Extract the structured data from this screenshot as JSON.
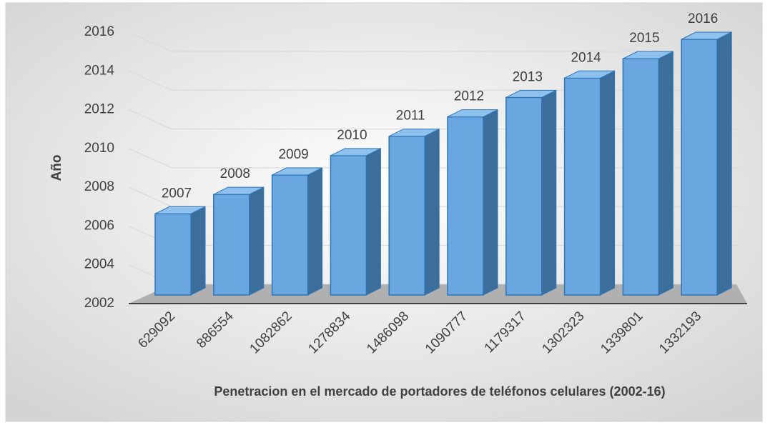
{
  "chart_data": {
    "type": "bar3d",
    "x_axis_label": "Penetracion en el mercado de portadores de teléfonos celulares (2002-16)",
    "y_axis_label": "Año",
    "categories": [
      "629092",
      "886554",
      "1082862",
      "1278834",
      "1486098",
      "1090777",
      "1179317",
      "1302323",
      "1339801",
      "1332193"
    ],
    "values": [
      2007,
      2008,
      2009,
      2010,
      2011,
      2012,
      2013,
      2014,
      2015,
      2016
    ],
    "color": "#6aa6e0",
    "ylim": [
      2002,
      2016
    ],
    "yticks": [
      2002,
      2004,
      2006,
      2008,
      2010,
      2012,
      2014,
      2016
    ],
    "grid": true
  }
}
